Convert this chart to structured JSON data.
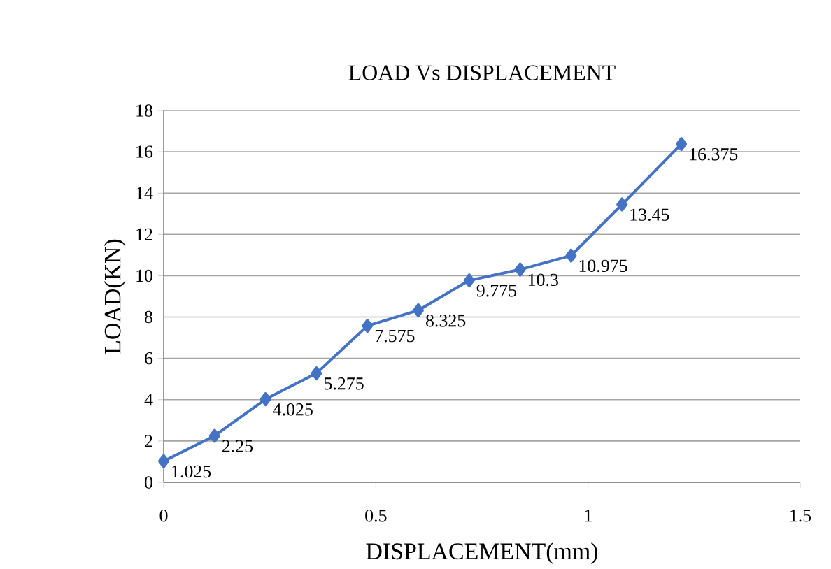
{
  "chart_data": {
    "type": "line",
    "title": "LOAD Vs DISPLACEMENT",
    "xlabel": "DISPLACEMENT(mm)",
    "ylabel": "LOAD(KN)",
    "x": [
      0,
      0.12,
      0.24,
      0.36,
      0.48,
      0.6,
      0.72,
      0.84,
      0.96,
      1.08,
      1.22
    ],
    "series": [
      {
        "color": "#4472c4",
        "values": [
          1.025,
          2.25,
          4.025,
          5.275,
          7.575,
          8.325,
          9.775,
          10.3,
          10.975,
          13.45,
          16.375
        ]
      }
    ],
    "xlim": [
      0,
      1.5
    ],
    "xticks": [
      0,
      0.5,
      1,
      1.5
    ],
    "ylim": [
      0,
      18
    ],
    "yticks": [
      0,
      2,
      4,
      6,
      8,
      10,
      12,
      14,
      16,
      18
    ],
    "grid": "y",
    "marker": "diamond",
    "line_style": "solid",
    "data_labels": true
  }
}
